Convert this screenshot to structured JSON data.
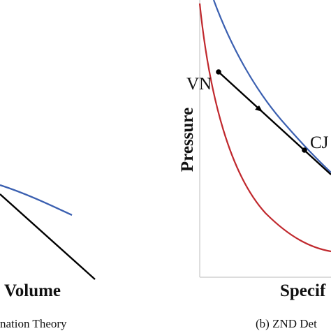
{
  "panel_a": {
    "x_axis_label": "Volume",
    "caption": "nation Theory",
    "colors": {
      "hugoniot": "#3a5fb0",
      "rayleigh": "#000000"
    }
  },
  "panel_b": {
    "y_axis_label": "Pressure",
    "x_axis_label": "Specif",
    "caption": "(b) ZND Det",
    "points": {
      "vn": "VN",
      "cj": "CJ"
    },
    "colors": {
      "reactant_hugoniot": "#c0282d",
      "product_hugoniot": "#3a5fb0",
      "rayleigh_line": "#000000",
      "axis": "#c8c8c8"
    }
  }
}
